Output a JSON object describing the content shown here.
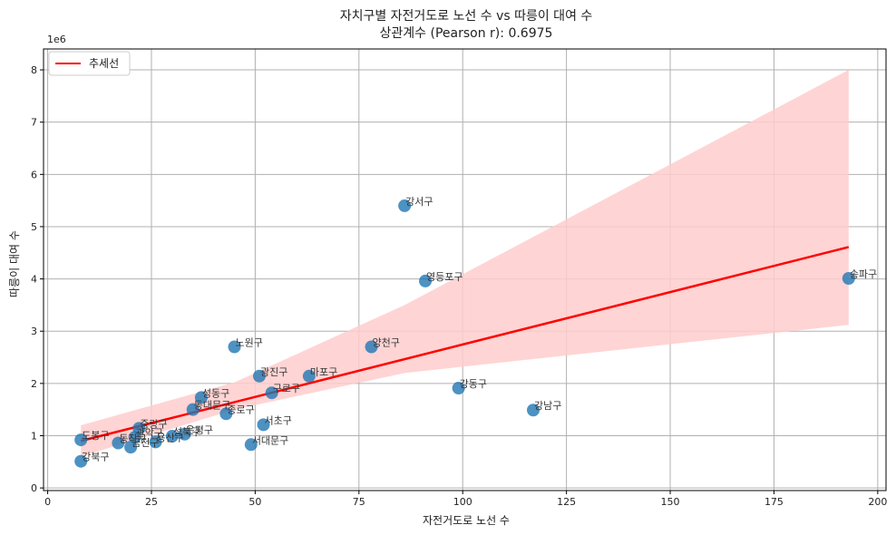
{
  "chart_data": {
    "type": "scatter",
    "title": "자치구별 자전거도로 노선 수 vs 따릉이 대여 수",
    "subtitle": "상관계수 (Pearson r): 0.6975",
    "xlabel": "자전거도로 노선 수",
    "ylabel": "따릉이 대여 수",
    "y_scale_note": "1e6",
    "xlim": [
      -1,
      202
    ],
    "ylim": [
      -50000,
      8400000
    ],
    "x_ticks": [
      0,
      25,
      50,
      75,
      100,
      125,
      150,
      175,
      200
    ],
    "x_tick_labels": [
      "0",
      "25",
      "50",
      "75",
      "100",
      "125",
      "150",
      "175",
      "200"
    ],
    "y_ticks": [
      0,
      1000000,
      2000000,
      3000000,
      4000000,
      5000000,
      6000000,
      7000000,
      8000000
    ],
    "y_tick_labels": [
      "0",
      "1",
      "2",
      "3",
      "4",
      "5",
      "6",
      "7",
      "8"
    ],
    "grid": true,
    "legend": {
      "position": "top-left",
      "entries": [
        "추세선"
      ]
    },
    "colors": {
      "points": "#1f77b4",
      "trend": "#ff0000",
      "band": "#ffcccc"
    },
    "points": [
      {
        "label": "강서구",
        "x": 86,
        "y": 5400000
      },
      {
        "label": "송파구",
        "x": 193,
        "y": 4010000
      },
      {
        "label": "영등포구",
        "x": 91,
        "y": 3960000
      },
      {
        "label": "노원구",
        "x": 45,
        "y": 2700000
      },
      {
        "label": "양천구",
        "x": 78,
        "y": 2700000
      },
      {
        "label": "광진구",
        "x": 51,
        "y": 2140000
      },
      {
        "label": "마포구",
        "x": 63,
        "y": 2140000
      },
      {
        "label": "강동구",
        "x": 99,
        "y": 1910000
      },
      {
        "label": "구로구",
        "x": 54,
        "y": 1820000
      },
      {
        "label": "성동구",
        "x": 37,
        "y": 1730000
      },
      {
        "label": "동대문구",
        "x": 35,
        "y": 1500000
      },
      {
        "label": "강남구",
        "x": 117,
        "y": 1490000
      },
      {
        "label": "종로구",
        "x": 43,
        "y": 1420000
      },
      {
        "label": "서초구",
        "x": 52,
        "y": 1210000
      },
      {
        "label": "중랑구",
        "x": 22,
        "y": 1140000
      },
      {
        "label": "은평구",
        "x": 33,
        "y": 1030000
      },
      {
        "label": "성북구",
        "x": 30,
        "y": 990000
      },
      {
        "label": "도봉구",
        "x": 8,
        "y": 920000
      },
      {
        "label": "관악구",
        "x": 21,
        "y": 970000
      },
      {
        "label": "동작구",
        "x": 17,
        "y": 860000
      },
      {
        "label": "용산구",
        "x": 26,
        "y": 880000
      },
      {
        "label": "금천구",
        "x": 20,
        "y": 780000
      },
      {
        "label": "서대문구",
        "x": 49,
        "y": 830000
      },
      {
        "label": "강북구",
        "x": 8,
        "y": 510000
      }
    ],
    "trend_line": {
      "x": [
        8,
        193
      ],
      "y": [
        900000,
        4610000
      ]
    },
    "confidence_band": {
      "x": [
        8,
        45,
        86,
        193
      ],
      "lower": [
        600000,
        1500000,
        2200000,
        3120000
      ],
      "upper": [
        1200000,
        2020000,
        3500000,
        8000000
      ]
    }
  }
}
